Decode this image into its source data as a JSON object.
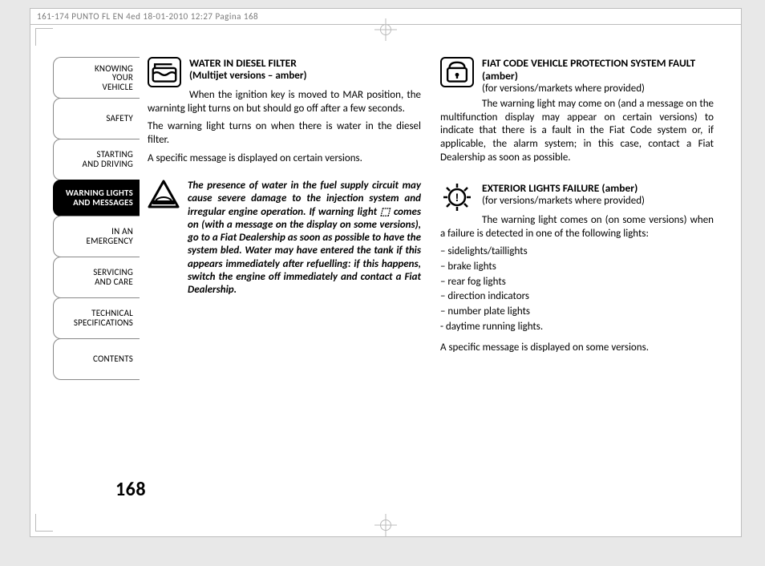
{
  "header": "161-174 PUNTO FL EN 4ed  18-01-2010  12:27  Pagina 168",
  "page_number": "168",
  "tabs": [
    {
      "label": "KNOWING\nYOUR\nVEHICLE",
      "active": false
    },
    {
      "label": "SAFETY",
      "active": false
    },
    {
      "label": "STARTING\nAND DRIVING",
      "active": false
    },
    {
      "label": "WARNING LIGHTS\nAND MESSAGES",
      "active": true
    },
    {
      "label": "IN AN\nEMERGENCY",
      "active": false
    },
    {
      "label": "SERVICING\nAND CARE",
      "active": false
    },
    {
      "label": "TECHNICAL\nSPECIFICATIONS",
      "active": false
    },
    {
      "label": "CONTENTS",
      "active": false
    }
  ],
  "left": {
    "s1": {
      "title": "WATER IN DIESEL FILTER",
      "sub": "(Multijet versions – amber)",
      "p1": "When the ignition key is moved to MAR position, the warnintg light turns on but should go off after a few seconds.",
      "p2": "The warning light turns on when there is water in the diesel filter.",
      "p3": "A specific message is displayed on certain versions."
    },
    "warn": "The presence of water in the fuel supply circuit may cause severe damage to the injection system and irregular engine operation. If warning light ⬚ comes on (with a message on the display on some versions), go to a Fiat Dealership as soon as possible to have the system bled. Water may have entered the tank if this appears immediately after refuelling: if this happens, switch the engine off immediately and contact a Fiat Dealership."
  },
  "right": {
    "s1": {
      "title": "FIAT CODE VEHICLE PROTECTION SYSTEM FAULT (amber)",
      "sub": "(for versions/markets where provided)",
      "p1": "The warning light may come on (and a message on the multifunction display may appear on certain versions) to indicate that there is a fault in the Fiat Code system or, if applicable, the alarm system; in this case, contact a Fiat Dealership as soon as possible."
    },
    "s2": {
      "title": "EXTERIOR LIGHTS FAILURE (amber)",
      "sub": "(for versions/markets where provided)",
      "intro": "The warning light comes on (on some versions) when a failure is detected in one of the following lights:",
      "items": [
        "– sidelights/taillights",
        "– brake lights",
        "– rear fog lights",
        "– direction indicators",
        "– number plate lights",
        "- daytime running lights."
      ],
      "outro": "A specific message is displayed on some versions."
    }
  }
}
